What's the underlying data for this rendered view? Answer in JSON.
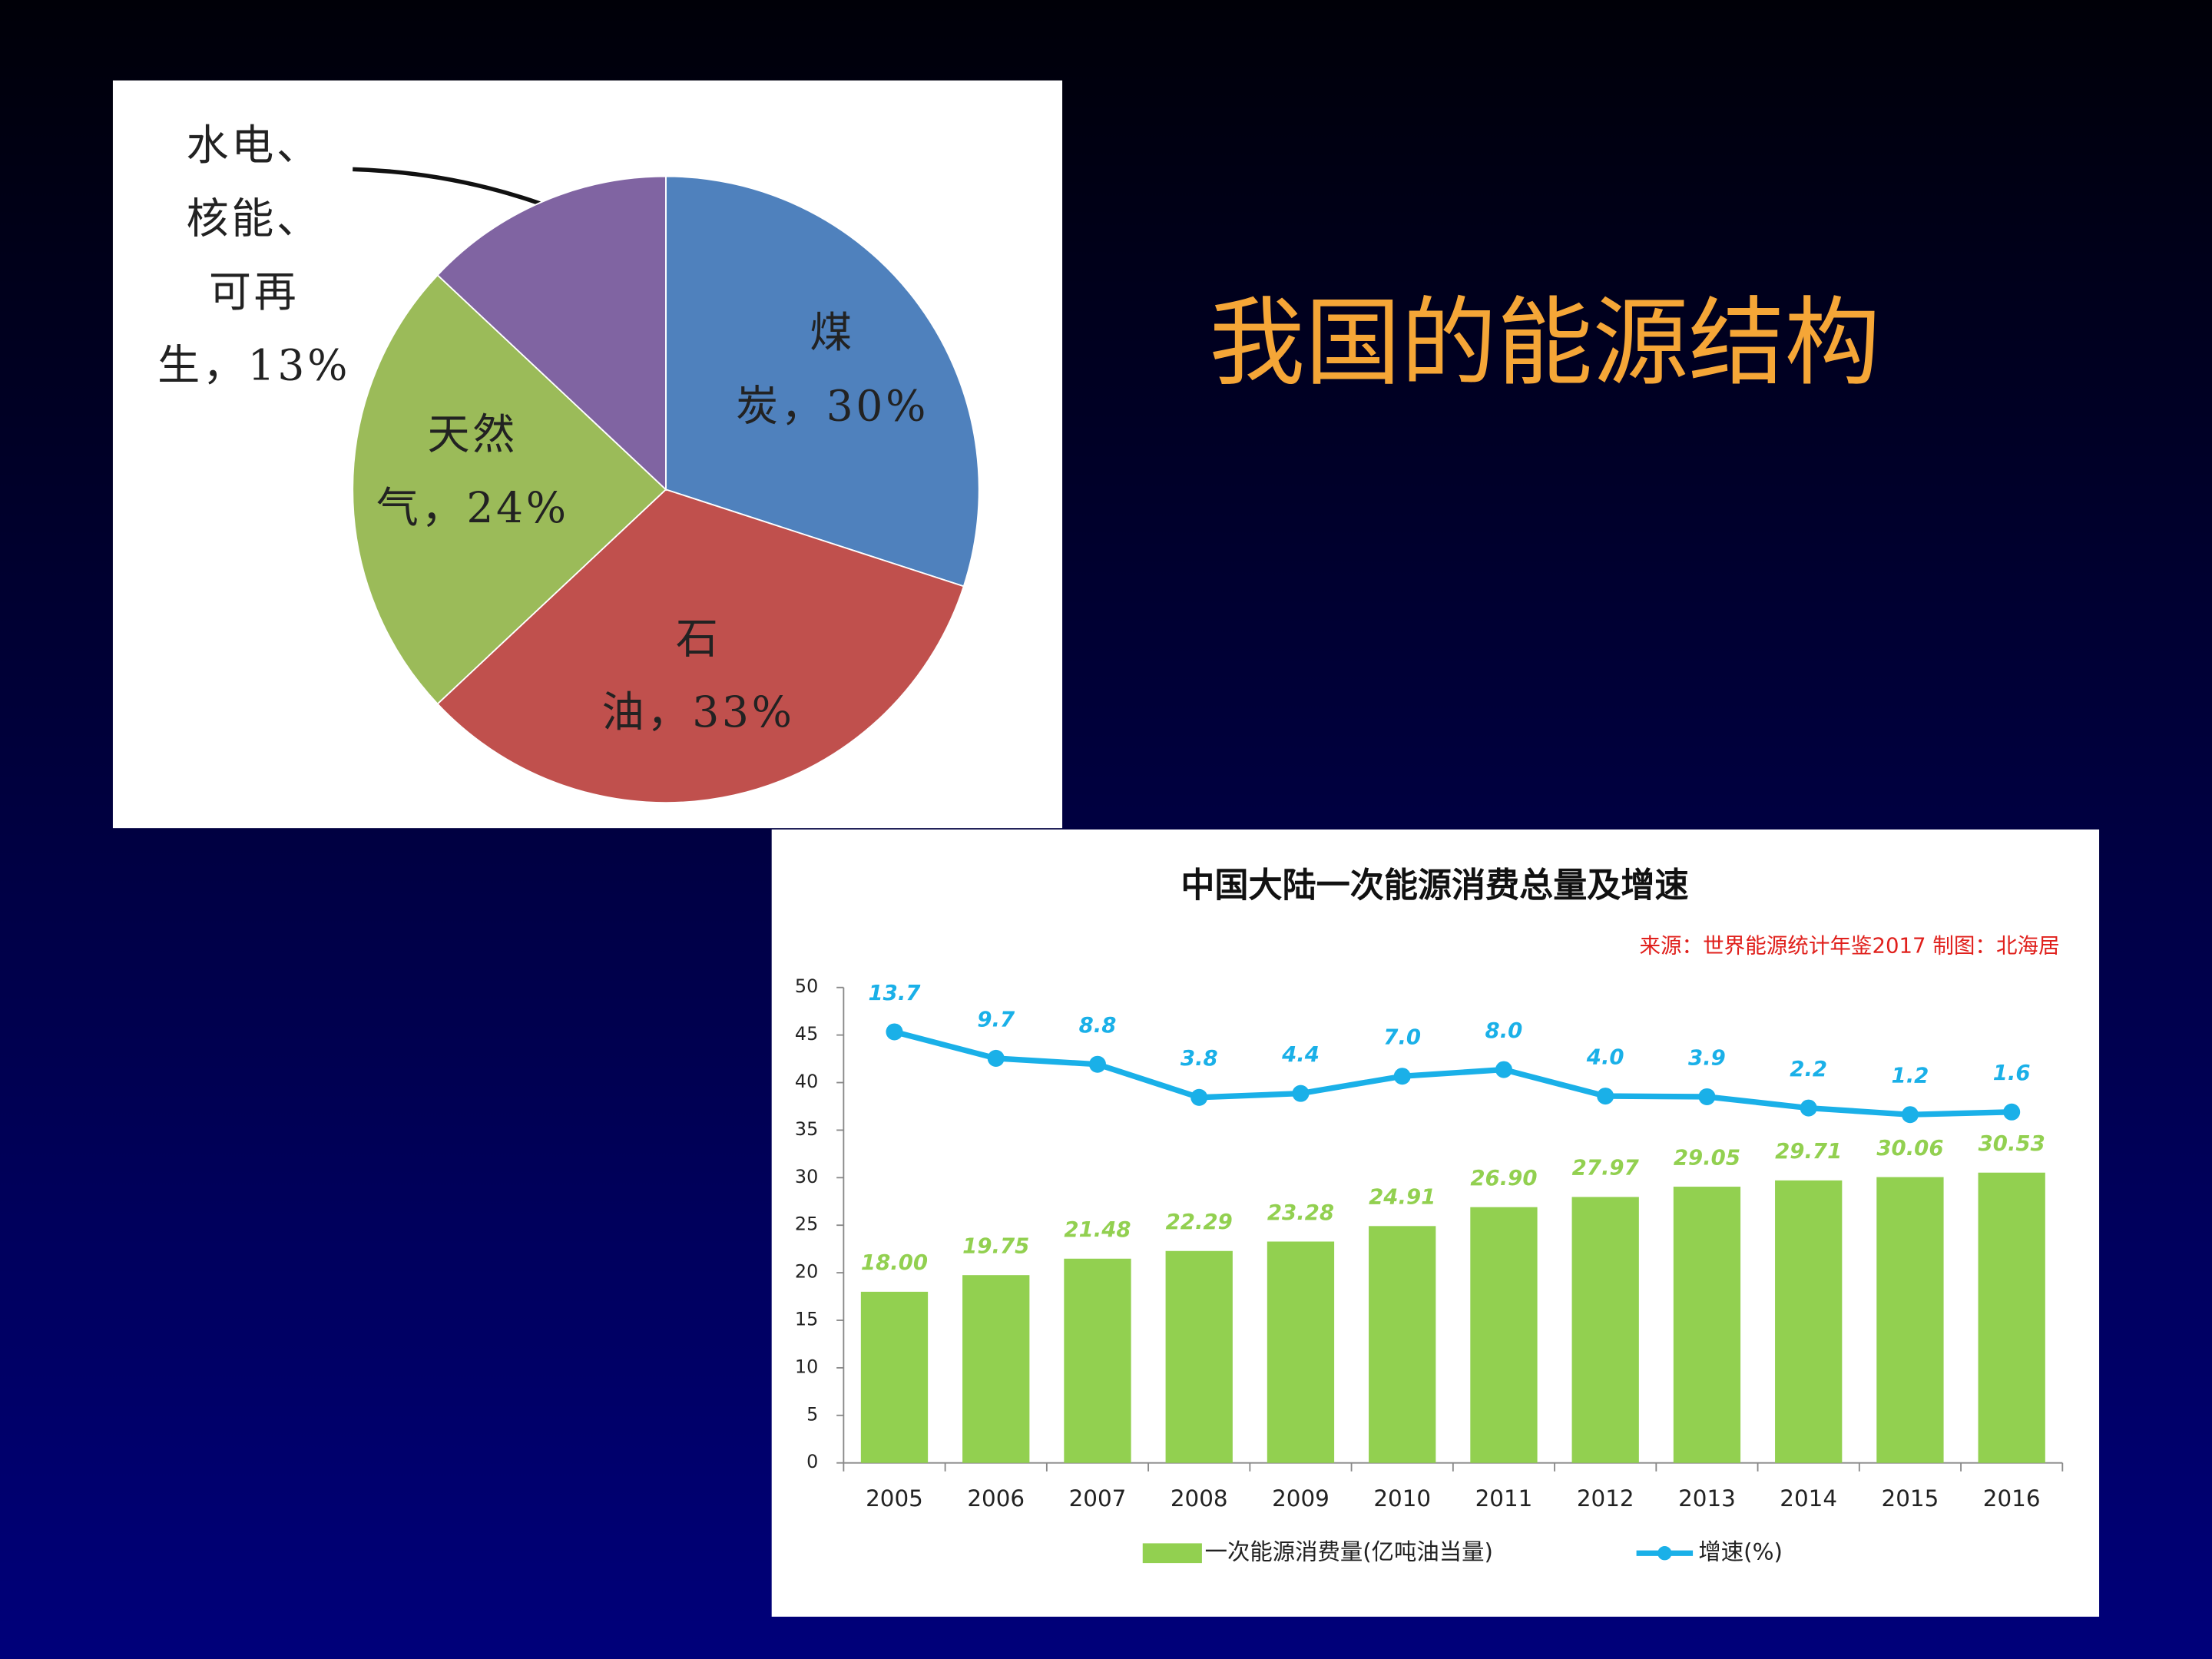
{
  "slide_title": "我国的能源结构",
  "chart_data": [
    {
      "type": "pie",
      "values": [
        30,
        33,
        24,
        13
      ],
      "value_labels": [
        "煤炭，30%",
        "石油，33%",
        "天然气，24%",
        "水电、核能、可再生，13%"
      ],
      "colors": [
        "#4f81bd",
        "#c0504d",
        "#9bbb59",
        "#8064a2"
      ]
    },
    {
      "type": "combo",
      "title": "中国大陆一次能源消费总量及增速",
      "source": "来源：世界能源统计年鉴2017 制图：北海居",
      "categories": [
        "2005",
        "2006",
        "2007",
        "2008",
        "2009",
        "2010",
        "2011",
        "2012",
        "2013",
        "2014",
        "2015",
        "2016"
      ],
      "series": [
        {
          "name": "一次能源消费量(亿吨油当量)",
          "type": "bar",
          "color": "#92d050",
          "values": [
            18,
            19.75,
            21.48,
            22.29,
            23.28,
            24.91,
            26.9,
            27.97,
            29.05,
            29.71,
            30.06,
            30.53
          ],
          "value_labels": [
            "18.00",
            "19.75",
            "21.48",
            "22.29",
            "23.28",
            "24.91",
            "26.90",
            "27.97",
            "29.05",
            "29.71",
            "30.06",
            "30.53"
          ]
        },
        {
          "name": "增速(%)",
          "type": "line",
          "axis": "y2",
          "color": "#1ab0e8",
          "values": [
            13.7,
            9.7,
            8.8,
            3.8,
            4.4,
            7,
            8,
            4,
            3.9,
            2.2,
            1.2,
            1.6
          ],
          "value_labels": [
            "13.7",
            "9.7",
            "8.8",
            "3.8",
            "4.4",
            "7.0",
            "8.0",
            "4.0",
            "3.9",
            "2.2",
            "1.2",
            "1.6"
          ]
        }
      ],
      "ylim": [
        0,
        50
      ],
      "yticks": [
        0,
        5,
        10,
        15,
        20,
        25,
        30,
        35,
        40,
        45,
        50
      ],
      "y2lim": [
        -51.4,
        20.4
      ]
    }
  ]
}
